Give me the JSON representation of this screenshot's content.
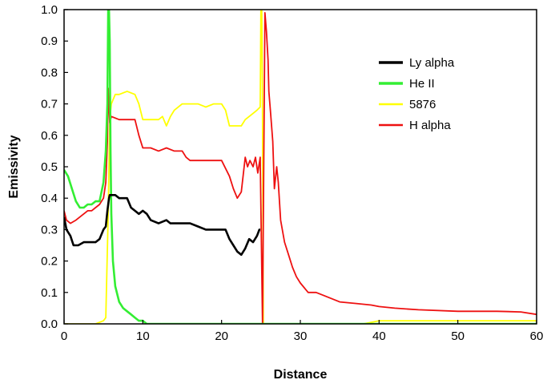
{
  "chart_data": {
    "type": "line",
    "title": "",
    "xlabel": "Distance",
    "ylabel": "Emissivity",
    "xlim": [
      0,
      60
    ],
    "ylim": [
      0,
      1.0
    ],
    "x_ticks": [
      0,
      10,
      20,
      30,
      40,
      50,
      60
    ],
    "y_ticks": [
      0.0,
      0.1,
      0.2,
      0.3,
      0.4,
      0.5,
      0.6,
      0.7,
      0.8,
      0.9,
      1.0
    ],
    "x_tick_labels": [
      "0",
      "10",
      "20",
      "30",
      "40",
      "50",
      "60"
    ],
    "y_tick_labels": [
      "0.0",
      "0.1",
      "0.2",
      "0.3",
      "0.4",
      "0.5",
      "0.6",
      "0.7",
      "0.8",
      "0.9",
      "1.0"
    ],
    "grid": false,
    "legend_position": "top-right",
    "series": [
      {
        "name": "Ly alpha",
        "color": "#000000",
        "x": [
          0,
          0.3,
          0.8,
          1.2,
          1.8,
          2.5,
          3.0,
          3.5,
          4.0,
          4.5,
          5.0,
          5.3,
          5.5,
          5.7,
          5.8,
          6.0,
          6.5,
          7.0,
          7.5,
          8.0,
          8.5,
          9.0,
          9.5,
          10.0,
          10.5,
          11.0,
          12.0,
          13.0,
          13.5,
          14.0,
          15.0,
          16.0,
          17.0,
          18.0,
          19.0,
          20.0,
          20.5,
          21.0,
          21.5,
          22.0,
          22.5,
          23.0,
          23.5,
          24.0,
          24.5,
          24.8,
          24.9
        ],
        "y": [
          0.34,
          0.3,
          0.28,
          0.25,
          0.25,
          0.26,
          0.26,
          0.26,
          0.26,
          0.27,
          0.3,
          0.31,
          0.36,
          0.4,
          0.41,
          0.41,
          0.41,
          0.4,
          0.4,
          0.4,
          0.37,
          0.36,
          0.35,
          0.36,
          0.35,
          0.33,
          0.32,
          0.33,
          0.32,
          0.32,
          0.32,
          0.32,
          0.31,
          0.3,
          0.3,
          0.3,
          0.3,
          0.27,
          0.25,
          0.23,
          0.22,
          0.24,
          0.27,
          0.26,
          0.28,
          0.3,
          0.3
        ]
      },
      {
        "name": "He II",
        "color": "#33ee33",
        "x": [
          0,
          0.5,
          1.0,
          1.5,
          2.0,
          2.5,
          3.0,
          3.5,
          4.0,
          4.5,
          5.0,
          5.3,
          5.5,
          5.6,
          5.7,
          5.8,
          5.9,
          6.0,
          6.2,
          6.5,
          7.0,
          7.5,
          8.0,
          8.5,
          9.0,
          9.5,
          10.0,
          10.5,
          11.0,
          15.0,
          20.0,
          30.0,
          40.0,
          50.0,
          60.0
        ],
        "y": [
          0.49,
          0.47,
          0.43,
          0.39,
          0.37,
          0.37,
          0.38,
          0.38,
          0.39,
          0.39,
          0.45,
          0.55,
          0.7,
          1.0,
          1.0,
          0.9,
          0.55,
          0.35,
          0.2,
          0.12,
          0.07,
          0.05,
          0.04,
          0.03,
          0.02,
          0.01,
          0.01,
          0.0,
          0.0,
          0.0,
          0.0,
          0.0,
          0.0,
          0.0,
          0.0
        ]
      },
      {
        "name": "5876",
        "color": "#ffff00",
        "x": [
          0,
          4.0,
          5.0,
          5.3,
          5.6,
          5.8,
          6.0,
          6.5,
          7.0,
          8.0,
          9.0,
          9.5,
          10.0,
          11.0,
          12.0,
          12.5,
          13.0,
          13.5,
          14.0,
          15.0,
          16.0,
          17.0,
          18.0,
          19.0,
          20.0,
          20.5,
          21.0,
          22.0,
          22.5,
          23.0,
          23.5,
          24.0,
          24.5,
          24.9,
          25.0,
          25.1,
          25.2,
          25.3,
          25.5,
          26.0,
          30.0,
          35.0,
          38.0,
          40.0,
          50.0,
          60.0
        ],
        "y": [
          0.0,
          0.0,
          0.01,
          0.02,
          0.35,
          0.65,
          0.7,
          0.73,
          0.73,
          0.74,
          0.73,
          0.7,
          0.65,
          0.65,
          0.65,
          0.66,
          0.63,
          0.66,
          0.68,
          0.7,
          0.7,
          0.7,
          0.69,
          0.7,
          0.7,
          0.68,
          0.63,
          0.63,
          0.63,
          0.65,
          0.66,
          0.67,
          0.68,
          0.69,
          1.0,
          1.0,
          0.68,
          0.0,
          0.0,
          0.0,
          0.0,
          0.0,
          0.0,
          0.01,
          0.01,
          0.01
        ]
      },
      {
        "name": "H alpha",
        "color": "#ee1111",
        "x": [
          0,
          0.3,
          0.8,
          1.5,
          2.0,
          2.5,
          3.0,
          3.5,
          4.0,
          4.5,
          5.0,
          5.3,
          5.5,
          5.6,
          5.8,
          6.0,
          7.0,
          8.0,
          9.0,
          9.5,
          10.0,
          11.0,
          12.0,
          13.0,
          14.0,
          15.0,
          15.5,
          16.0,
          17.0,
          18.0,
          19.0,
          20.0,
          21.0,
          21.5,
          22.0,
          22.5,
          23.0,
          23.3,
          23.6,
          24.0,
          24.3,
          24.6,
          24.9,
          25.2,
          25.5,
          25.7,
          25.9,
          26.0,
          26.2,
          26.5,
          26.7,
          27.0,
          27.2,
          27.5,
          28.0,
          28.5,
          29.0,
          29.5,
          30.0,
          31.0,
          32.0,
          33.0,
          35.0,
          37.0,
          39.0,
          40.0,
          42.0,
          45.0,
          50.0,
          55.0,
          58.0,
          60.0
        ],
        "y": [
          0.36,
          0.33,
          0.32,
          0.33,
          0.34,
          0.35,
          0.36,
          0.36,
          0.37,
          0.38,
          0.4,
          0.45,
          0.58,
          0.75,
          0.64,
          0.66,
          0.65,
          0.65,
          0.65,
          0.6,
          0.56,
          0.56,
          0.55,
          0.56,
          0.55,
          0.55,
          0.53,
          0.52,
          0.52,
          0.52,
          0.52,
          0.52,
          0.47,
          0.43,
          0.4,
          0.42,
          0.53,
          0.5,
          0.52,
          0.5,
          0.53,
          0.48,
          0.53,
          0.0,
          0.99,
          0.93,
          0.84,
          0.74,
          0.68,
          0.58,
          0.43,
          0.5,
          0.45,
          0.33,
          0.26,
          0.22,
          0.18,
          0.15,
          0.13,
          0.1,
          0.1,
          0.09,
          0.07,
          0.065,
          0.06,
          0.055,
          0.05,
          0.045,
          0.04,
          0.04,
          0.038,
          0.03
        ]
      }
    ]
  }
}
